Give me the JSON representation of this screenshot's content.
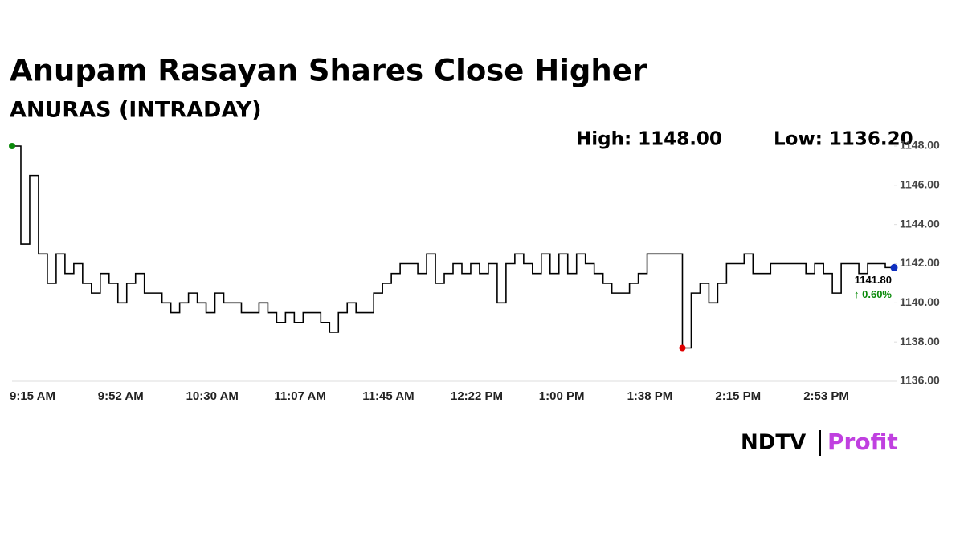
{
  "chart_data": {
    "type": "line",
    "title": "Anupam Rasayan Shares Close Higher",
    "subtitle": "ANURAS (INTRADAY)",
    "high_label": "High: 1148.00",
    "low_label": "Low: 1136.20",
    "last_label": "1141.80",
    "change_label": "↑ 0.60%",
    "brand": "NDTV",
    "brand_sub": "Profit",
    "color": "#000000",
    "start_color": "#0a8a0a",
    "low_color": "#e00000",
    "end_color": "#1030c0",
    "categories": [
      "9:15 AM",
      null,
      null,
      null,
      null,
      null,
      null,
      null,
      null,
      null,
      "9:52 AM",
      null,
      null,
      null,
      null,
      null,
      null,
      null,
      null,
      null,
      "10:30 AM",
      null,
      null,
      null,
      null,
      null,
      null,
      null,
      null,
      null,
      "11:07 AM",
      null,
      null,
      null,
      null,
      null,
      null,
      null,
      null,
      null,
      "11:45 AM",
      null,
      null,
      null,
      null,
      null,
      null,
      null,
      null,
      null,
      "12:22 PM",
      null,
      null,
      null,
      null,
      null,
      null,
      null,
      null,
      null,
      "1:00 PM",
      null,
      null,
      null,
      null,
      null,
      null,
      null,
      null,
      null,
      "1:38 PM",
      null,
      null,
      null,
      null,
      null,
      null,
      null,
      null,
      null,
      "2:15 PM",
      null,
      null,
      null,
      null,
      null,
      null,
      null,
      null,
      null,
      "2:53 PM",
      null,
      null,
      null,
      null,
      null,
      null,
      null,
      null,
      null,
      null
    ],
    "values": [
      1148,
      1143,
      1146.5,
      1142.5,
      1141,
      1142.5,
      1141.5,
      1142,
      1141,
      1140.5,
      1141.5,
      1141,
      1140,
      1141,
      1141.5,
      1140.5,
      1140.5,
      1140,
      1139.5,
      1140,
      1140.5,
      1140,
      1139.5,
      1140.5,
      1140,
      1140,
      1139.5,
      1139.5,
      1140,
      1139.5,
      1139,
      1139.5,
      1139,
      1139.5,
      1139.5,
      1139,
      1138.5,
      1139.5,
      1140,
      1139.5,
      1139.5,
      1140.5,
      1141,
      1141.5,
      1142,
      1142,
      1141.5,
      1142.5,
      1141,
      1141.5,
      1142,
      1141.5,
      1142,
      1141.5,
      1142,
      1140,
      1142,
      1142.5,
      1142,
      1141.5,
      1142.5,
      1141.5,
      1142.5,
      1141.5,
      1142.5,
      1142,
      1141.5,
      1141,
      1140.5,
      1140.5,
      1141,
      1141.5,
      1142.5,
      1142.5,
      1142.5,
      1142.5,
      1137.7,
      1140.5,
      1141,
      1140,
      1141,
      1142,
      1142,
      1142.5,
      1141.5,
      1141.5,
      1142,
      1142,
      1142,
      1142,
      1141.5,
      1142,
      1141.5,
      1140.5,
      1142,
      1142,
      1141.5,
      1142,
      1142,
      1141.8,
      1141.8
    ],
    "ylim": [
      1136,
      1148
    ],
    "yticks": [
      {
        "value": 1136,
        "label": "1136.00"
      },
      {
        "value": 1138,
        "label": "1138.00"
      },
      {
        "value": 1140,
        "label": "1140.00"
      },
      {
        "value": 1142,
        "label": "1142.00"
      },
      {
        "value": 1144,
        "label": "1144.00"
      },
      {
        "value": 1146,
        "label": "1146.00"
      },
      {
        "value": 1148,
        "label": "1148.00"
      }
    ]
  }
}
